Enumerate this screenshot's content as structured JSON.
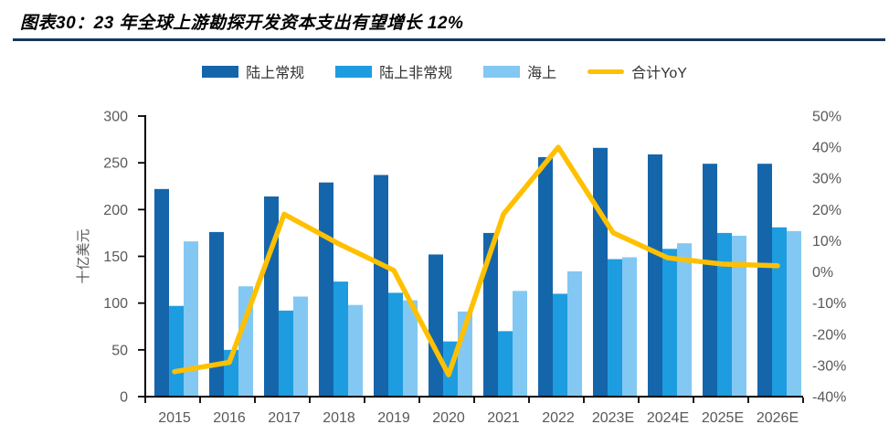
{
  "title": "图表30：23 年全球上游勘探开发资本支出有望增长 12%",
  "colors": {
    "title_underline": "#17375E",
    "axis_line": "#000000",
    "axis_text": "#595959",
    "legend_text": "#333333",
    "background": "#FFFFFF"
  },
  "chart_data": {
    "type": "bar",
    "subtype": "grouped bars + line on secondary axis",
    "title": "23 年全球上游勘探开发资本支出有望增长 12%",
    "categories": [
      "2015",
      "2016",
      "2017",
      "2018",
      "2019",
      "2020",
      "2021",
      "2022",
      "2023E",
      "2024E",
      "2025E",
      "2026E"
    ],
    "series": [
      {
        "id": "onshore-conventional",
        "name": "陆上常规",
        "kind": "bar",
        "color": "#1565AB",
        "values": [
          222,
          176,
          214,
          229,
          237,
          152,
          175,
          256,
          266,
          259,
          249,
          249
        ]
      },
      {
        "id": "onshore-unconventional",
        "name": "陆上非常规",
        "kind": "bar",
        "color": "#1E9CE0",
        "values": [
          97,
          50,
          92,
          123,
          111,
          59,
          70,
          110,
          147,
          158,
          175,
          181
        ]
      },
      {
        "id": "offshore",
        "name": "海上",
        "kind": "bar",
        "color": "#83C8F2",
        "values": [
          166,
          118,
          107,
          98,
          103,
          91,
          113,
          134,
          149,
          164,
          172,
          177
        ]
      },
      {
        "id": "total-yoy",
        "name": "合计YoY",
        "kind": "line",
        "axis": "right",
        "color": "#FFC000",
        "values": [
          -32,
          -29,
          18.5,
          9,
          0.5,
          -33,
          18.5,
          40,
          12.6,
          4.5,
          2.5,
          2
        ]
      }
    ],
    "left_axis": {
      "title": "十亿美元",
      "min": 0,
      "max": 300,
      "step": 50,
      "tick_labels": [
        "300",
        "250",
        "200",
        "150",
        "100",
        "50",
        "0"
      ]
    },
    "right_axis": {
      "min": -40,
      "max": 50,
      "step": 10,
      "tick_labels": [
        "50%",
        "40%",
        "30%",
        "20%",
        "10%",
        "0%",
        "-10%",
        "-20%",
        "-30%",
        "-40%"
      ]
    },
    "grid": false,
    "legend_position": "top"
  }
}
